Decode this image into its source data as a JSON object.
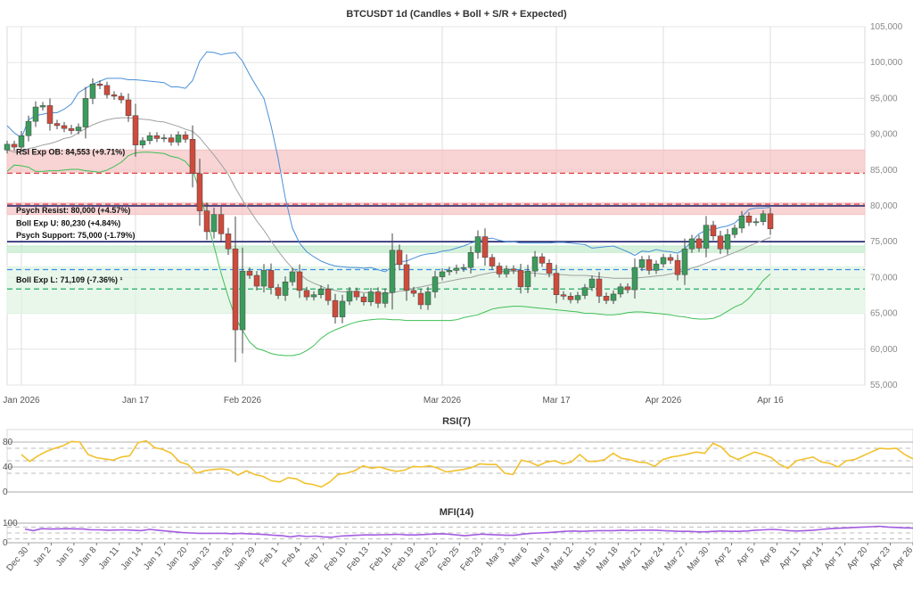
{
  "chart_data": [
    {
      "panel": "price",
      "type": "candlestick",
      "title": "BTCUSDT 1d (Candles + Boll + S/R + Expected)",
      "y_ticks": [
        55000,
        60000,
        65000,
        70000,
        75000,
        80000,
        85000,
        90000,
        95000,
        100000,
        105000
      ],
      "y_tick_labels": [
        "55,000",
        "60,000",
        "65,000",
        "70,000",
        "75,000",
        "80,000",
        "85,000",
        "90,000",
        "95,000",
        "100,000",
        "105,000"
      ],
      "ylim": [
        55000,
        105000
      ],
      "x_ticks": [
        {
          "date": "2026-01-01",
          "label": "Jan 2026"
        },
        {
          "date": "2026-01-17",
          "label": "Jan 17"
        },
        {
          "date": "2026-02-01",
          "label": "Feb 2026"
        },
        {
          "date": "2026-03-01",
          "label": "Mar 2026"
        },
        {
          "date": "2026-03-17",
          "label": "Mar 17"
        },
        {
          "date": "2026-04-01",
          "label": "Apr 2026"
        },
        {
          "date": "2026-04-16",
          "label": "Apr 16"
        }
      ],
      "start_date": "2025-12-30",
      "close": [
        88600,
        88200,
        89800,
        91800,
        93800,
        94000,
        91500,
        91200,
        90800,
        90500,
        91000,
        95000,
        97000,
        96800,
        95500,
        95300,
        94800,
        92600,
        88500,
        89100,
        89800,
        89400,
        89500,
        88900,
        89900,
        89300,
        84500,
        79300,
        76400,
        78800,
        76100,
        74000,
        62700,
        70900,
        70300,
        68800,
        71000,
        68600,
        67500,
        69400,
        70800,
        68200,
        67300,
        67600,
        68400,
        66800,
        64500,
        66700,
        68100,
        67300,
        66600,
        68000,
        66400,
        67900,
        73800,
        71800,
        68200,
        67800,
        66200,
        68000,
        70100,
        70800,
        71000,
        71300,
        71400,
        73500,
        75700,
        72800,
        71600,
        70500,
        71200,
        71000,
        68700,
        70900,
        72900,
        72000,
        70600,
        67600,
        67400,
        66900,
        67500,
        68600,
        69800,
        67400,
        66800,
        67700,
        68700,
        68300,
        71400,
        72500,
        71000,
        71900,
        72800,
        72400,
        70400,
        74000,
        75400,
        74100,
        77300,
        75800,
        74000,
        76000,
        76900,
        78600,
        77700,
        77800,
        78900,
        76800
      ],
      "series": [
        {
          "name": "Boll Upper",
          "color": "#4a90d9",
          "values": [
            91200,
            90200,
            89500,
            92000,
            92600,
            92800,
            93000,
            93000,
            93500,
            94200,
            95800,
            96400,
            97000,
            97400,
            97800,
            97800,
            97800,
            97600,
            97600,
            97500,
            97400,
            97300,
            97200,
            96600,
            96600,
            96400,
            97500,
            100200,
            101500,
            101400,
            101100,
            101300,
            101400,
            100200,
            98300,
            96600,
            95000,
            91200,
            86600,
            81100,
            76900,
            74800,
            73600,
            72900,
            72300,
            71900,
            71600,
            71500,
            71400,
            71400,
            71300,
            71400,
            71100,
            70800,
            71500,
            72200,
            72300,
            72700,
            73100,
            73300,
            73400,
            73700,
            73800,
            74100,
            74400,
            74800,
            75100,
            75400,
            75500,
            75200,
            75000,
            75000,
            74800,
            74800,
            74800,
            74800,
            74800,
            74900,
            74900,
            74800,
            74700,
            74600,
            74100,
            74200,
            74300,
            74400,
            74000,
            73600,
            73100,
            73700,
            73600,
            73900,
            73700,
            73600,
            73400,
            74000,
            75100,
            76100,
            76600,
            76700,
            77000,
            77200,
            77600,
            78500,
            79500,
            79700,
            79700,
            79800
          ]
        },
        {
          "name": "Boll Mid",
          "color": "#a0a0a0",
          "values": [
            87800,
            87500,
            87600,
            88000,
            88200,
            88500,
            88700,
            89000,
            89400,
            89600,
            90200,
            90800,
            91300,
            91700,
            92000,
            92200,
            92300,
            92300,
            92200,
            92100,
            92000,
            91800,
            91700,
            91400,
            91100,
            90700,
            90400,
            89500,
            88300,
            87100,
            85800,
            84400,
            82500,
            80800,
            79400,
            77900,
            76600,
            75100,
            73700,
            72400,
            71300,
            70500,
            69700,
            69200,
            68800,
            68400,
            68200,
            68000,
            68000,
            68000,
            67900,
            67900,
            67700,
            67700,
            67900,
            68100,
            68200,
            68500,
            68700,
            68900,
            69100,
            69300,
            69500,
            69700,
            69900,
            70000,
            70300,
            70500,
            70700,
            70800,
            70900,
            70900,
            70800,
            70700,
            70600,
            70500,
            70400,
            70400,
            70400,
            70300,
            70300,
            70300,
            70200,
            70100,
            70000,
            69900,
            69900,
            69900,
            69900,
            70000,
            70100,
            70200,
            70300,
            70500,
            70700,
            71000,
            71300,
            71600,
            72000,
            72400,
            72700,
            73100,
            73500,
            73900,
            74400,
            74800,
            75200,
            75600
          ]
        },
        {
          "name": "Boll Lower",
          "color": "#3fbf55",
          "values": [
            84800,
            85700,
            85600,
            85400,
            84800,
            84800,
            84900,
            84900,
            85000,
            85100,
            85100,
            84900,
            84800,
            84700,
            85000,
            85500,
            86100,
            87000,
            87400,
            87500,
            87500,
            87400,
            87300,
            86900,
            86700,
            86200,
            85000,
            82100,
            78000,
            74400,
            70600,
            67300,
            64400,
            62600,
            61000,
            60100,
            59800,
            59400,
            59200,
            59100,
            59100,
            59300,
            59800,
            60500,
            61500,
            62200,
            62700,
            63100,
            63500,
            63800,
            64000,
            64100,
            64200,
            64200,
            64100,
            64100,
            64000,
            64000,
            64000,
            64000,
            64000,
            64000,
            64000,
            64100,
            64400,
            64600,
            64800,
            65200,
            65600,
            65800,
            65900,
            66000,
            66000,
            65900,
            65800,
            65700,
            65600,
            65500,
            65400,
            65300,
            65200,
            65000,
            65000,
            64900,
            64800,
            64800,
            64900,
            65100,
            65200,
            65200,
            65100,
            65000,
            64900,
            64800,
            64600,
            64500,
            64300,
            64200,
            64200,
            64300,
            64700,
            65300,
            65900,
            66300,
            67100,
            68300,
            69600,
            70500
          ]
        }
      ],
      "zones": [
        {
          "kind": "resistance",
          "from": 84700,
          "to": 87800,
          "color": "#f5c2c2"
        },
        {
          "kind": "resistance",
          "from": 78800,
          "to": 80400,
          "color": "#f5c2c2"
        },
        {
          "kind": "support",
          "from": 73500,
          "to": 74400,
          "color": "#c5ebcc"
        },
        {
          "kind": "support",
          "from": 65000,
          "to": 71500,
          "color": "#dff3e3"
        }
      ],
      "levels": [
        {
          "value": 84553,
          "color": "#e04444",
          "style": "dashed"
        },
        {
          "value": 80000,
          "color": "#1b1f6b",
          "style": "solid"
        },
        {
          "value": 80230,
          "color": "#e04444",
          "style": "dashed"
        },
        {
          "value": 75000,
          "color": "#1b1f6b",
          "style": "solid"
        },
        {
          "value": 71109,
          "color": "#3a8ee6",
          "style": "dashed"
        },
        {
          "value": 68400,
          "color": "#22aa66",
          "style": "dashed"
        }
      ],
      "annotations": [
        {
          "text": "RSI Exp OB: 84,553 (+9.71%)",
          "y": 87500
        },
        {
          "text": "Psych Resist: 80,000 (+4.57%)",
          "y": 79400
        },
        {
          "text": "Boll Exp U: 80,230 (+4.84%)",
          "y": 77600
        },
        {
          "text": "Psych Support: 75,000 (-1.79%)",
          "y": 75900
        },
        {
          "text": "Boll Exp L: 71,109 (-7.36%) ¹",
          "y": 69700
        }
      ],
      "up_color": "#3c9b5c",
      "down_color": "#cd4b3c"
    },
    {
      "panel": "rsi",
      "type": "line",
      "title": "RSI(7)",
      "y_ticks": [
        0,
        40,
        80
      ],
      "y_tick_labels": [
        "0",
        "40",
        "80"
      ],
      "ylim": [
        0,
        100
      ],
      "levels": [
        70,
        50,
        30
      ],
      "color": "#f2c12e",
      "values": [
        60,
        49,
        58,
        65,
        70,
        74,
        81,
        80,
        60,
        55,
        53,
        51,
        56,
        58,
        79,
        82,
        71,
        68,
        62,
        48,
        44,
        30,
        34,
        36,
        37,
        35,
        27,
        34,
        28,
        25,
        18,
        16,
        23,
        21,
        14,
        12,
        8,
        16,
        28,
        30,
        34,
        42,
        38,
        40,
        36,
        33,
        35,
        41,
        40,
        42,
        38,
        32,
        34,
        36,
        39,
        45,
        44,
        44,
        30,
        28,
        51,
        48,
        42,
        48,
        50,
        45,
        48,
        60,
        49,
        49,
        52,
        62,
        54,
        52,
        48,
        47,
        41,
        52,
        56,
        58,
        61,
        64,
        62,
        78,
        72,
        58,
        52,
        58,
        64,
        60,
        55,
        44,
        38,
        50,
        53,
        56,
        48,
        46,
        40,
        50,
        52,
        58,
        64,
        70,
        69,
        70,
        60,
        53
      ]
    },
    {
      "panel": "mfi",
      "type": "line",
      "title": "MFI(14)",
      "y_ticks": [
        0,
        100
      ],
      "y_tick_labels": [
        "0",
        "100"
      ],
      "ylim": [
        0,
        100
      ],
      "levels": [
        80,
        50,
        20
      ],
      "color": "#a35be0",
      "values": [
        70,
        62,
        72,
        70,
        71,
        72,
        71,
        70,
        66,
        66,
        64,
        65,
        66,
        64,
        62,
        68,
        64,
        60,
        56,
        52,
        50,
        48,
        48,
        48,
        48,
        46,
        48,
        45,
        44,
        42,
        38,
        36,
        30,
        36,
        32,
        34,
        30,
        28,
        34,
        36,
        38,
        40,
        40,
        41,
        42,
        43,
        40,
        40,
        42,
        44,
        46,
        44,
        40,
        36,
        40,
        44,
        42,
        40,
        38,
        38,
        44,
        48,
        50,
        52,
        55,
        58,
        60,
        58,
        60,
        62,
        62,
        62,
        64,
        62,
        64,
        64,
        64,
        62,
        60,
        58,
        58,
        56,
        56,
        58,
        60,
        58,
        58,
        60,
        64,
        66,
        68,
        66,
        62,
        60,
        62,
        64,
        68,
        72,
        74,
        76,
        78,
        80,
        82,
        84,
        80,
        78,
        76,
        75
      ]
    }
  ],
  "mfi_x_labels": [
    "Dec 30",
    "Jan 2",
    "Jan 5",
    "Jan 8",
    "Jan 11",
    "Jan 14",
    "Jan 17",
    "Jan 20",
    "Jan 23",
    "Jan 26",
    "Jan 29",
    "Feb 1",
    "Feb 4",
    "Feb 7",
    "Feb 10",
    "Feb 13",
    "Feb 16",
    "Feb 19",
    "Feb 22",
    "Feb 25",
    "Feb 28",
    "Mar 3",
    "Mar 6",
    "Mar 9",
    "Mar 12",
    "Mar 15",
    "Mar 18",
    "Mar 21",
    "Mar 24",
    "Mar 27",
    "Mar 30",
    "Apr 2",
    "Apr 5",
    "Apr 8",
    "Apr 11",
    "Apr 14",
    "Apr 17",
    "Apr 20",
    "Apr 23",
    "Apr 26"
  ]
}
